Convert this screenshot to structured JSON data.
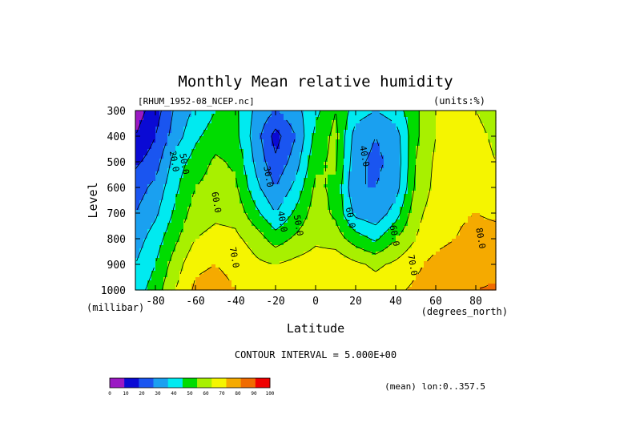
{
  "chart_data": {
    "type": "heatmap",
    "title": "Monthly Mean relative humidity",
    "dataset_label": "[RHUM_1952-08_NCEP.nc]",
    "units_label": "(units:%)",
    "xlabel": "Latitude",
    "x_unit_label": "(degrees_north)",
    "ylabel": "Level",
    "y_unit_label": "(millibar)",
    "xlim": [
      -90,
      90
    ],
    "ylim": [
      1000,
      300
    ],
    "x_ticks": [
      -80,
      -60,
      -40,
      -20,
      0,
      20,
      40,
      60,
      80
    ],
    "y_ticks": [
      300,
      400,
      500,
      600,
      700,
      800,
      900,
      1000
    ],
    "contour_interval_label": "CONTOUR INTERVAL = 5.000E+00",
    "mean_note": "(mean) lon:0..357.5",
    "contour_labels": [
      {
        "text": "20.0",
        "x": -72,
        "p": 500
      },
      {
        "text": "50.0",
        "x": -67,
        "p": 510
      },
      {
        "text": "60.0",
        "x": -51,
        "p": 660
      },
      {
        "text": "30.0",
        "x": -25,
        "p": 560
      },
      {
        "text": "40.0",
        "x": -18,
        "p": 735
      },
      {
        "text": "50.0",
        "x": -10,
        "p": 750
      },
      {
        "text": "70.0",
        "x": -42,
        "p": 875
      },
      {
        "text": "60.0",
        "x": 16,
        "p": 720
      },
      {
        "text": "40.0",
        "x": 23,
        "p": 480
      },
      {
        "text": "60.0",
        "x": 38,
        "p": 790
      },
      {
        "text": "70.0",
        "x": 47,
        "p": 905
      },
      {
        "text": "80.0",
        "x": 81,
        "p": 800
      }
    ],
    "colorbar": {
      "ticks": [
        "0",
        "10",
        "20",
        "30",
        "40",
        "50",
        "60",
        "70",
        "80",
        "90",
        "100"
      ],
      "colors": [
        "#9b19c4",
        "#0a0ad4",
        "#1a55f0",
        "#1aa0f0",
        "#00eaf0",
        "#00dc00",
        "#a8f000",
        "#f5f500",
        "#f5aa00",
        "#f06b00",
        "#f00000"
      ]
    },
    "latitudes": [
      -90,
      -80,
      -70,
      -60,
      -50,
      -40,
      -30,
      -20,
      -10,
      0,
      10,
      20,
      30,
      40,
      50,
      60,
      70,
      80,
      90
    ],
    "levels": [
      300,
      400,
      500,
      600,
      700,
      800,
      900,
      1000
    ],
    "values": [
      [
        5,
        15,
        32,
        42,
        50,
        52,
        38,
        30,
        37,
        47,
        60,
        45,
        40,
        45,
        58,
        70,
        75,
        70,
        65
      ],
      [
        10,
        20,
        35,
        48,
        55,
        53,
        35,
        16,
        30,
        53,
        63,
        35,
        30,
        35,
        58,
        70,
        75,
        73,
        68
      ],
      [
        18,
        25,
        45,
        54,
        62,
        58,
        38,
        22,
        35,
        58,
        62,
        32,
        28,
        33,
        60,
        72,
        75,
        74,
        70
      ],
      [
        25,
        33,
        48,
        60,
        65,
        62,
        43,
        30,
        43,
        62,
        58,
        30,
        30,
        35,
        62,
        73,
        75,
        77,
        72
      ],
      [
        30,
        38,
        52,
        65,
        68,
        67,
        53,
        40,
        52,
        65,
        58,
        37,
        33,
        45,
        67,
        75,
        78,
        80,
        78
      ],
      [
        35,
        45,
        58,
        70,
        73,
        72,
        66,
        55,
        62,
        68,
        65,
        55,
        48,
        60,
        70,
        77,
        80,
        84,
        84
      ],
      [
        40,
        50,
        65,
        78,
        80,
        77,
        72,
        70,
        73,
        75,
        77,
        72,
        68,
        72,
        78,
        83,
        85,
        86,
        88
      ],
      [
        45,
        55,
        70,
        82,
        84,
        80,
        78,
        75,
        77,
        80,
        80,
        78,
        75,
        78,
        82,
        85,
        87,
        90,
        91
      ]
    ]
  }
}
